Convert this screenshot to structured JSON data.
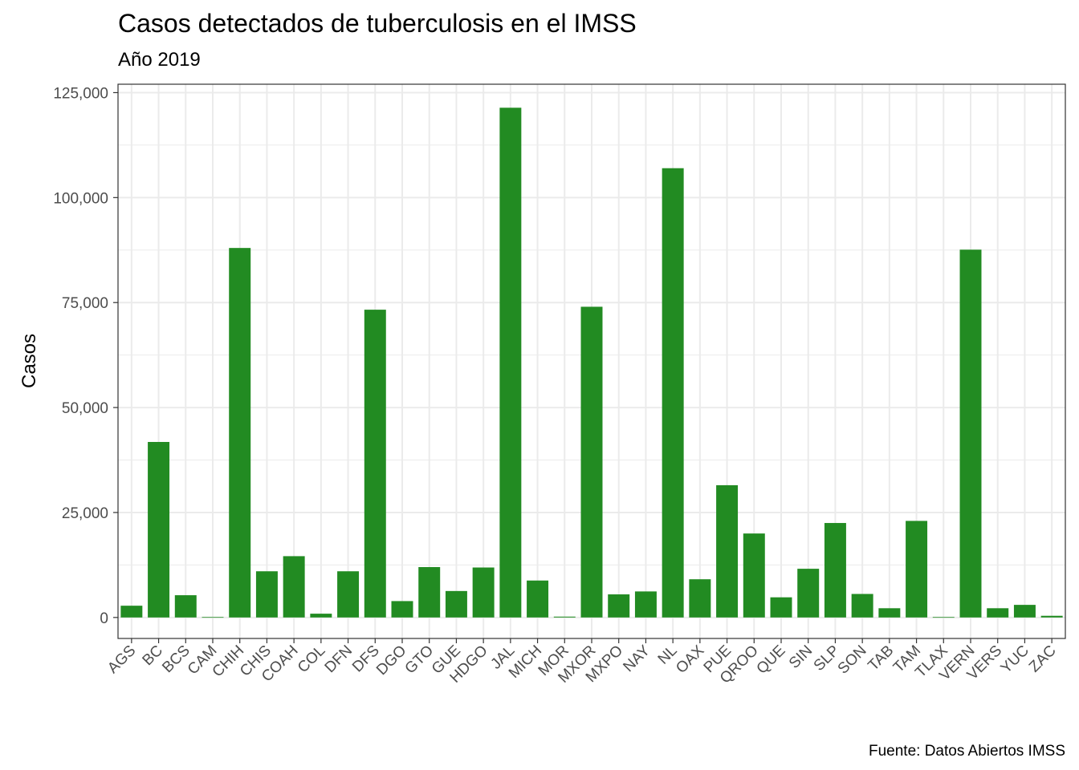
{
  "chart_data": {
    "type": "bar",
    "title": "Casos detectados de tuberculosis en el IMSS",
    "subtitle": "Año 2019",
    "xlabel": "",
    "ylabel": "Casos",
    "caption": "Fuente: Datos Abiertos IMSS",
    "bar_color": "#228B22",
    "ylim": [
      -5000,
      127000
    ],
    "yticks": [
      0,
      25000,
      50000,
      75000,
      100000,
      125000
    ],
    "ytick_labels": [
      "0",
      "25,000",
      "50,000",
      "75,000",
      "100,000",
      "125,000"
    ],
    "grid": true,
    "categories": [
      "AGS",
      "BC",
      "BCS",
      "CAM",
      "CHIH",
      "CHIS",
      "COAH",
      "COL",
      "DFN",
      "DFS",
      "DGO",
      "GTO",
      "GUE",
      "HDGO",
      "JAL",
      "MICH",
      "MOR",
      "MXOR",
      "MXPO",
      "NAY",
      "NL",
      "OAX",
      "PUE",
      "QROO",
      "QUE",
      "SIN",
      "SLP",
      "SON",
      "TAB",
      "TAM",
      "TLAX",
      "VERN",
      "VERS",
      "YUC",
      "ZAC"
    ],
    "values": [
      2800,
      41800,
      5300,
      100,
      88000,
      11000,
      14600,
      900,
      11000,
      73300,
      3900,
      12000,
      6300,
      11900,
      121400,
      8800,
      200,
      74000,
      5500,
      6200,
      107000,
      9100,
      31500,
      20000,
      4800,
      11600,
      22500,
      5600,
      2200,
      23000,
      100,
      87600,
      2200,
      3000,
      400
    ]
  }
}
